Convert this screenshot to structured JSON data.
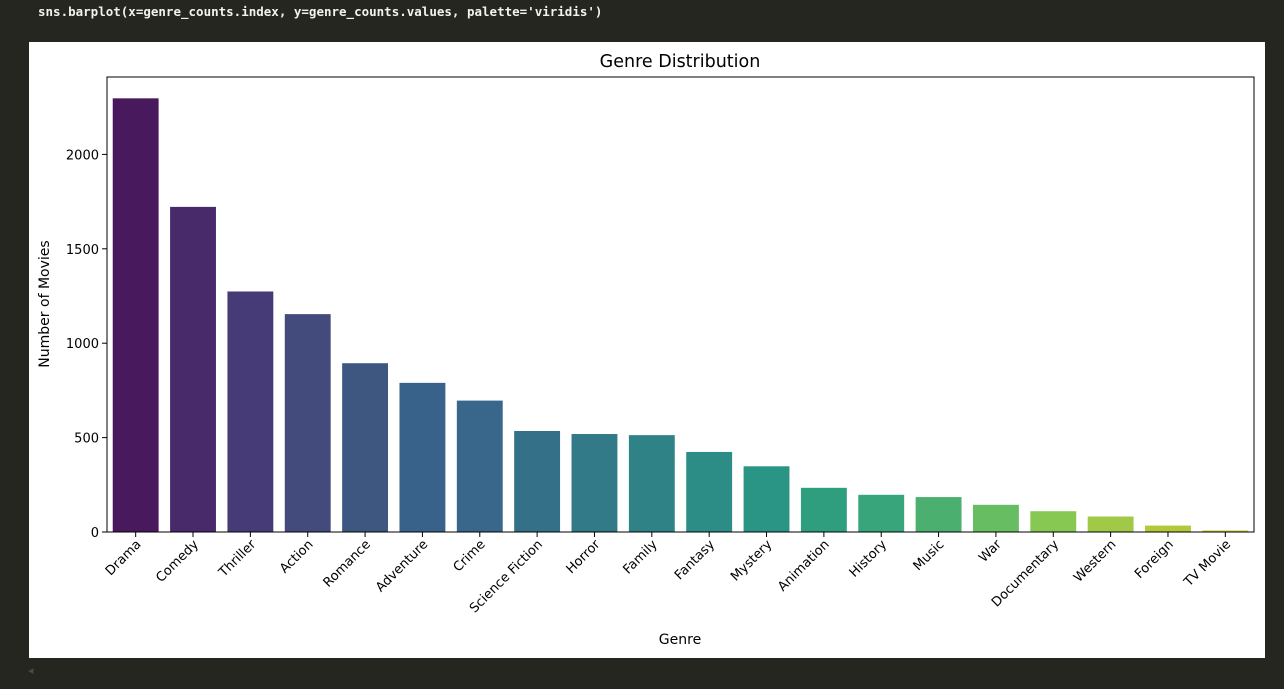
{
  "cell": {
    "code": "sns.barplot(x=genre_counts.index, y=genre_counts.values, palette='viridis')"
  },
  "chart_data": {
    "type": "bar",
    "title": "Genre Distribution",
    "xlabel": "Genre",
    "ylabel": "Number of Movies",
    "palette": "viridis",
    "categories": [
      "Drama",
      "Comedy",
      "Thriller",
      "Action",
      "Romance",
      "Adventure",
      "Crime",
      "Science Fiction",
      "Horror",
      "Family",
      "Fantasy",
      "Mystery",
      "Animation",
      "History",
      "Music",
      "War",
      "Documentary",
      "Western",
      "Foreign",
      "TV Movie"
    ],
    "values": [
      2297,
      1722,
      1274,
      1154,
      894,
      790,
      696,
      535,
      519,
      513,
      424,
      348,
      234,
      197,
      185,
      144,
      110,
      82,
      34,
      8
    ],
    "colors": [
      "#481a5d",
      "#482a6b",
      "#463b76",
      "#434b7c",
      "#3e5781",
      "#39628a",
      "#38678b",
      "#357089",
      "#327a88",
      "#2f8387",
      "#2c8c86",
      "#2a9584",
      "#2e9e7f",
      "#38a67a",
      "#4bb06f",
      "#66bd62",
      "#86c852",
      "#9fc946",
      "#b4c83a",
      "#c7c22a"
    ],
    "ylim": [
      0,
      2410
    ],
    "yticks": [
      0,
      500,
      1000,
      1500,
      2000
    ],
    "xtick_rotation": 45,
    "grid": false,
    "legend": "none"
  }
}
